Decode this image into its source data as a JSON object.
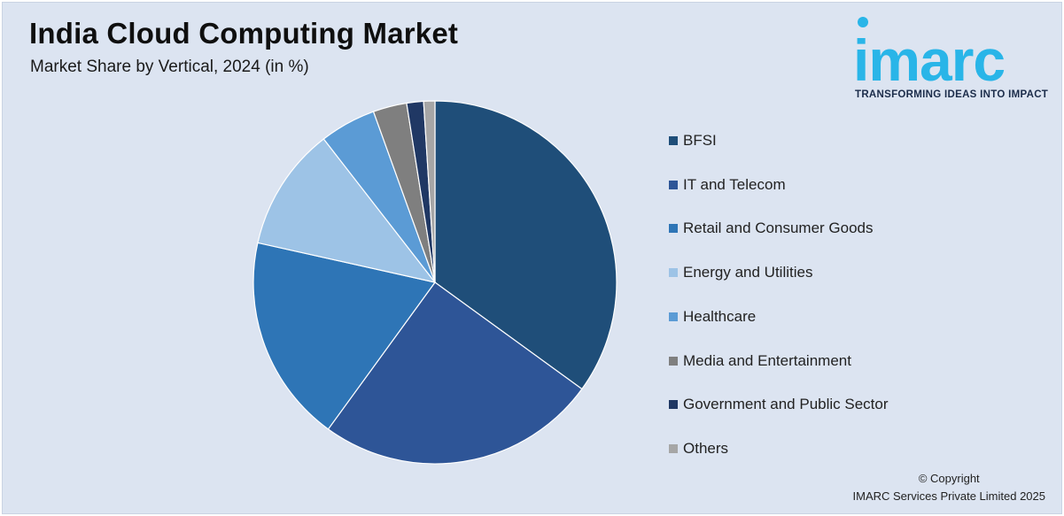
{
  "header": {
    "title": "India Cloud Computing Market",
    "subtitle": "Market Share by Vertical, 2024 (in %)"
  },
  "logo": {
    "wordmark": "imarc",
    "tagline": "TRANSFORMING IDEAS INTO IMPACT",
    "color": "#29b5e8"
  },
  "chart_data": {
    "type": "pie",
    "title": "India Cloud Computing Market",
    "subtitle": "Market Share by Vertical, 2024 (in %)",
    "legend_position": "right",
    "slices": [
      {
        "label": "BFSI",
        "value": 35.0,
        "color": "#1f4e79"
      },
      {
        "label": "IT and Telecom",
        "value": 25.0,
        "color": "#2e5597"
      },
      {
        "label": "Retail and Consumer Goods",
        "value": 18.5,
        "color": "#2e75b6"
      },
      {
        "label": "Energy and Utilities",
        "value": 11.0,
        "color": "#9dc3e6"
      },
      {
        "label": "Healthcare",
        "value": 5.0,
        "color": "#5b9bd5"
      },
      {
        "label": "Media and Entertainment",
        "value": 3.0,
        "color": "#7f7f7f"
      },
      {
        "label": "Government and Public Sector",
        "value": 1.5,
        "color": "#203864"
      },
      {
        "label": "Others",
        "value": 1.0,
        "color": "#a6a6a6"
      }
    ]
  },
  "footer": {
    "copyright_line1": "© Copyright",
    "copyright_line2": "IMARC Services Private Limited 2025"
  }
}
